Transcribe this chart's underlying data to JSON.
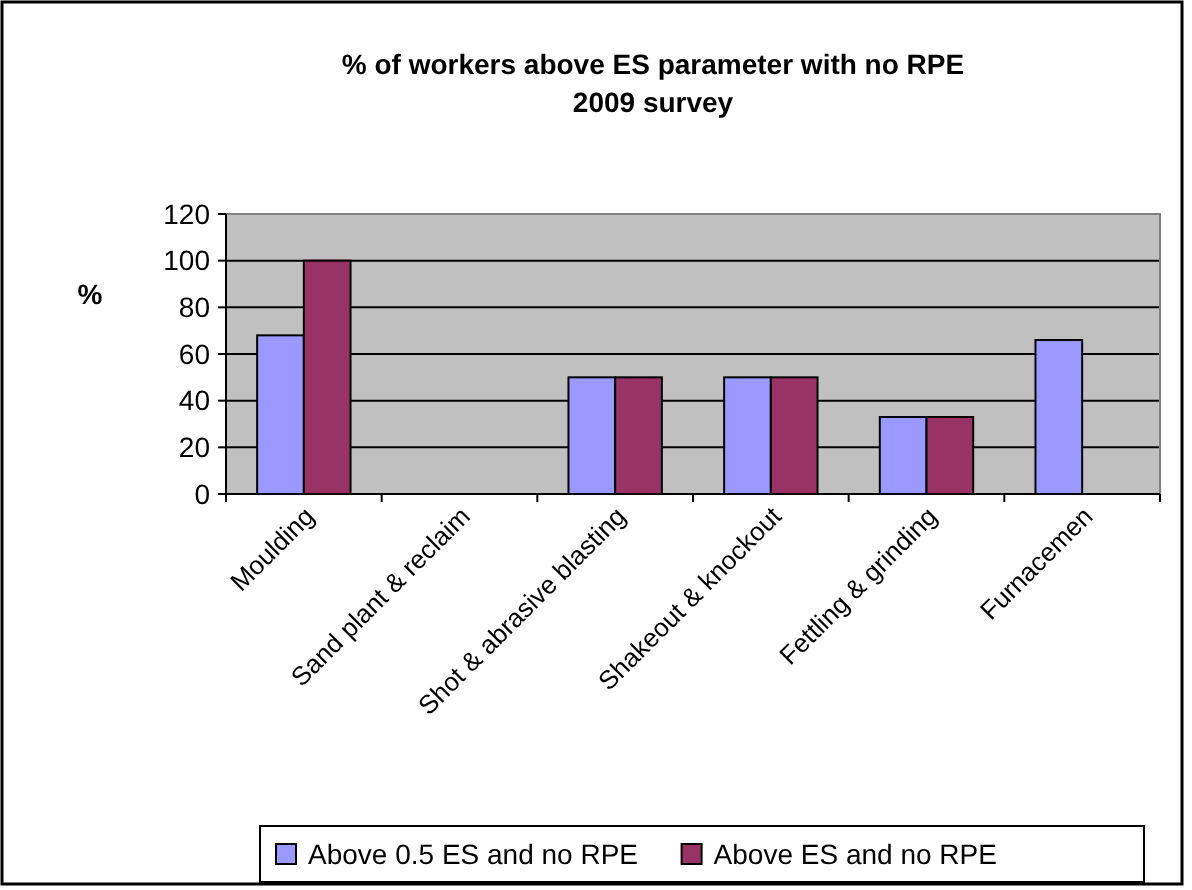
{
  "chart_data": {
    "type": "bar",
    "title": "% of workers above ES parameter with no RPE\n2009 survey",
    "ylabel": "%",
    "categories": [
      "Moulding",
      "Sand plant & reclaim",
      "Shot & abrasive blasting",
      "Shakeout & knockout",
      "Fettling & grinding",
      "Furnacemen"
    ],
    "series": [
      {
        "name": "Above 0.5 ES and no RPE",
        "color": "#9999ff",
        "values": [
          68,
          0,
          50,
          50,
          33,
          66
        ]
      },
      {
        "name": "Above ES and no RPE",
        "color": "#993366",
        "values": [
          100,
          0,
          50,
          50,
          33,
          0
        ]
      }
    ],
    "ylim": [
      0,
      120
    ],
    "yticks": [
      0,
      20,
      40,
      60,
      80,
      100,
      120
    ],
    "grid": "y",
    "legend": "bottom"
  }
}
